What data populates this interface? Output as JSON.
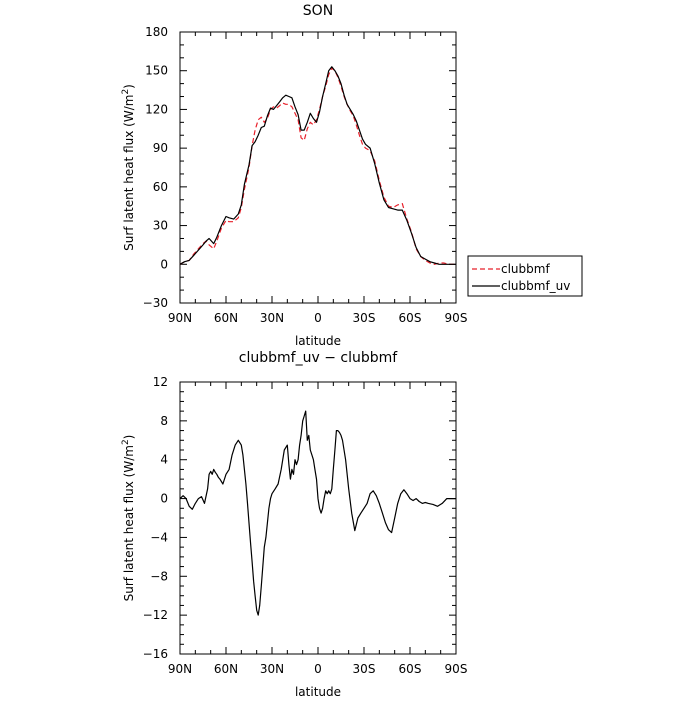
{
  "chart_data": [
    {
      "type": "line",
      "title": "SON",
      "xlabel": "latitude",
      "ylabel": "Surf latent heat flux (W/m",
      "ylabel_sup": "2",
      "ylabel_end": ")",
      "xlim": [
        90,
        -90
      ],
      "ylim": [
        -30,
        180
      ],
      "x_ticks": [
        90,
        60,
        30,
        0,
        -30,
        -60,
        -90
      ],
      "x_tick_labels": [
        "90N",
        "60N",
        "30N",
        "0",
        "30S",
        "60S",
        "90S"
      ],
      "y_ticks": [
        -30,
        0,
        30,
        60,
        90,
        120,
        150,
        180
      ],
      "y_tick_labels": [
        "−30",
        "0",
        "30",
        "60",
        "90",
        "120",
        "150",
        "180"
      ],
      "legend": "right",
      "series": [
        {
          "name": "clubbmf",
          "color": "#e8202a",
          "dash": true,
          "x": [
            90,
            87,
            84,
            81,
            78,
            75,
            73,
            71,
            68,
            66,
            63,
            60,
            58,
            55,
            52,
            50,
            48,
            45,
            43,
            41,
            39,
            37,
            35,
            33,
            31,
            29,
            27,
            25,
            23,
            21,
            19,
            17,
            15,
            13,
            11,
            9,
            7,
            5,
            3,
            1,
            -1,
            -3,
            -5,
            -7,
            -9,
            -11,
            -13,
            -15,
            -17,
            -19,
            -21,
            -23,
            -25,
            -27,
            -29,
            -31,
            -34,
            -37,
            -40,
            -43,
            -46,
            -49,
            -52,
            -55,
            -58,
            -61,
            -64,
            -67,
            -70,
            -73,
            -76,
            -79,
            -82,
            -85,
            -88,
            -90
          ],
          "y": [
            0,
            2,
            3,
            8,
            12,
            16,
            18,
            15,
            12,
            18,
            28,
            34,
            33,
            33,
            36,
            44,
            58,
            75,
            92,
            104,
            112,
            114,
            110,
            113,
            120,
            122,
            121,
            123,
            125,
            124,
            124,
            122,
            117,
            112,
            98,
            96,
            105,
            110,
            108,
            112,
            120,
            130,
            138,
            147,
            152,
            150,
            145,
            138,
            130,
            124,
            119,
            115,
            108,
            100,
            93,
            90,
            88,
            80,
            65,
            52,
            45,
            44,
            46,
            47,
            35,
            25,
            12,
            6,
            3,
            1,
            0,
            1,
            1,
            0,
            0,
            0
          ]
        },
        {
          "name": "clubbmf_uv",
          "color": "#000000",
          "dash": false,
          "x": [
            90,
            87,
            84,
            81,
            78,
            75,
            73,
            71,
            68,
            66,
            63,
            60,
            58,
            55,
            52,
            50,
            48,
            45,
            43,
            41,
            39,
            37,
            35,
            33,
            31,
            29,
            27,
            25,
            23,
            21,
            19,
            17,
            15,
            13,
            11,
            9,
            7,
            5,
            3,
            1,
            -1,
            -3,
            -5,
            -7,
            -9,
            -11,
            -13,
            -15,
            -17,
            -19,
            -21,
            -23,
            -25,
            -27,
            -29,
            -31,
            -34,
            -37,
            -40,
            -43,
            -46,
            -49,
            -52,
            -55,
            -58,
            -61,
            -64,
            -67,
            -70,
            -73,
            -76,
            -79,
            -82,
            -85,
            -88,
            -90
          ],
          "y": [
            0,
            2,
            3,
            7,
            11,
            15,
            18,
            20,
            16,
            21,
            30,
            37,
            36,
            35,
            39,
            46,
            62,
            77,
            92,
            95,
            100,
            106,
            107,
            115,
            121,
            120,
            123,
            126,
            129,
            131,
            130,
            129,
            122,
            116,
            104,
            104,
            110,
            117,
            113,
            110,
            118,
            130,
            140,
            150,
            153,
            150,
            146,
            140,
            131,
            124,
            120,
            116,
            111,
            104,
            97,
            93,
            90,
            78,
            63,
            50,
            44,
            43,
            42,
            42,
            34,
            24,
            13,
            6,
            4,
            2,
            1,
            0,
            0,
            0,
            0,
            0
          ]
        }
      ]
    },
    {
      "type": "line",
      "title": "clubbmf_uv − clubbmf",
      "xlabel": "latitude",
      "ylabel": "Surf latent heat flux (W/m",
      "ylabel_sup": "2",
      "ylabel_end": ")",
      "xlim": [
        90,
        -90
      ],
      "ylim": [
        -16,
        12
      ],
      "x_ticks": [
        90,
        60,
        30,
        0,
        -30,
        -60,
        -90
      ],
      "x_tick_labels": [
        "90N",
        "60N",
        "30N",
        "0",
        "30S",
        "60S",
        "90S"
      ],
      "y_ticks": [
        -16,
        -12,
        -8,
        -4,
        0,
        4,
        8,
        12
      ],
      "y_tick_labels": [
        "−16",
        "−12",
        "−8",
        "−4",
        "0",
        "4",
        "8",
        "12"
      ],
      "series": [
        {
          "color": "#000000",
          "dash": false,
          "x": [
            90,
            88,
            86,
            84,
            82,
            80,
            78,
            76,
            74,
            72,
            71,
            70,
            69,
            68,
            67,
            66,
            65,
            64,
            62,
            60,
            58,
            56,
            54,
            52,
            50,
            49,
            48,
            47,
            46,
            45,
            44,
            43,
            42,
            41,
            40,
            39,
            38,
            37,
            36,
            35,
            34,
            33,
            32,
            31,
            30,
            28,
            26,
            24,
            22,
            20,
            19,
            18,
            17,
            16,
            15,
            14,
            13,
            12,
            11,
            10,
            9,
            8,
            7,
            6,
            5,
            4,
            3,
            2,
            1,
            0,
            -1,
            -2,
            -3,
            -4,
            -5,
            -6,
            -7,
            -8,
            -9,
            -10,
            -11,
            -12,
            -13,
            -14,
            -15,
            -16,
            -18,
            -20,
            -22,
            -24,
            -26,
            -28,
            -30,
            -32,
            -34,
            -36,
            -38,
            -40,
            -42,
            -44,
            -46,
            -48,
            -50,
            -52,
            -54,
            -56,
            -58,
            -60,
            -62,
            -64,
            -66,
            -68,
            -70,
            -72,
            -75,
            -78,
            -81,
            -84,
            -86,
            -88,
            -90
          ],
          "y": [
            0,
            0.3,
            0,
            -0.8,
            -1.1,
            -0.5,
            0,
            0.2,
            -0.5,
            1,
            2.5,
            2.8,
            2.5,
            3,
            2.7,
            2.5,
            2.2,
            2,
            1.5,
            2.5,
            3,
            4.5,
            5.5,
            6,
            5.5,
            4.5,
            3,
            1.5,
            -0.5,
            -2.5,
            -4.5,
            -6.5,
            -8.5,
            -10,
            -11.5,
            -12,
            -11,
            -9,
            -7,
            -5,
            -4,
            -2.5,
            -1,
            0,
            0.5,
            1,
            1.5,
            3,
            5,
            5.5,
            3.5,
            2,
            3,
            2.5,
            4,
            3.5,
            4,
            5.5,
            6.5,
            8,
            8.5,
            9,
            6,
            6.5,
            5,
            4.5,
            4,
            3,
            2,
            0,
            -1,
            -1.5,
            -1,
            0,
            0.8,
            0.5,
            0.8,
            0.5,
            1,
            3,
            5,
            7,
            7,
            6.8,
            6.5,
            6,
            4,
            1,
            -1.5,
            -3.3,
            -2,
            -1.5,
            -1,
            -0.5,
            0.5,
            0.8,
            0.3,
            -0.5,
            -1.5,
            -2.5,
            -3.2,
            -3.5,
            -2,
            -0.5,
            0.5,
            0.9,
            0.5,
            0,
            -0.2,
            0,
            -0.3,
            -0.5,
            -0.4,
            -0.5,
            -0.6,
            -0.8,
            -0.5,
            0,
            0,
            0,
            0
          ]
        }
      ]
    }
  ]
}
